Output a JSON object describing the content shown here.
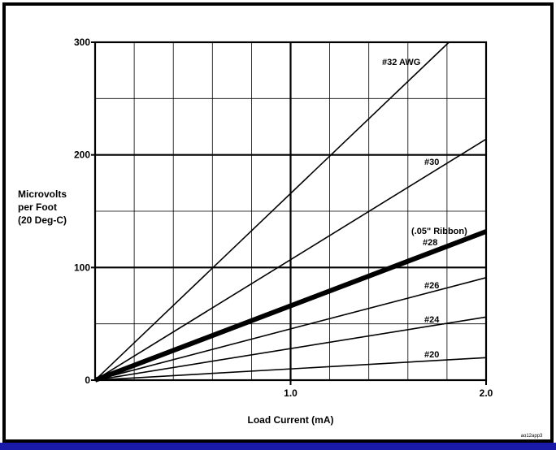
{
  "colors": {
    "frame_border": "#000000",
    "bottom_bar": "#1a1aa8",
    "line": "#000000",
    "background": "#ffffff"
  },
  "chart_data": {
    "type": "line",
    "title": "",
    "xlabel": "Load Current (mA)",
    "ylabel_lines": [
      "Microvolts",
      "per Foot",
      "(20 Deg-C)"
    ],
    "xlim": [
      0,
      2.0
    ],
    "ylim": [
      0,
      300
    ],
    "x_ticks": [
      {
        "value": 1.0,
        "label": "1.0"
      },
      {
        "value": 2.0,
        "label": "2.0"
      }
    ],
    "y_ticks": [
      {
        "value": 0,
        "label": "0"
      },
      {
        "value": 100,
        "label": "100"
      },
      {
        "value": 200,
        "label": "200"
      },
      {
        "value": 300,
        "label": "300"
      }
    ],
    "grid": true,
    "x_minor_step": 0.2,
    "y_minor_step": 50,
    "series": [
      {
        "name": "#32 AWG",
        "x": [
          0,
          1.81
        ],
        "y": [
          0,
          300
        ],
        "label_lines": [
          "#32 AWG"
        ],
        "heavy": false
      },
      {
        "name": "#30",
        "x": [
          0,
          2.0
        ],
        "y": [
          0,
          214
        ],
        "label_lines": [
          "#30"
        ],
        "heavy": false
      },
      {
        "name": "#28",
        "x": [
          0,
          2.0
        ],
        "y": [
          0,
          132
        ],
        "label_lines": [
          "(.05\" Ribbon)",
          "#28"
        ],
        "heavy": true
      },
      {
        "name": "#26",
        "x": [
          0,
          2.0
        ],
        "y": [
          0,
          91
        ],
        "label_lines": [
          "#26"
        ],
        "heavy": false
      },
      {
        "name": "#24",
        "x": [
          0,
          2.0
        ],
        "y": [
          0,
          56
        ],
        "label_lines": [
          "#24"
        ],
        "heavy": false
      },
      {
        "name": "#20",
        "x": [
          0,
          2.0
        ],
        "y": [
          0,
          20
        ],
        "label_lines": [
          "#20"
        ],
        "heavy": false
      }
    ]
  },
  "corner_note": "ao12app3"
}
